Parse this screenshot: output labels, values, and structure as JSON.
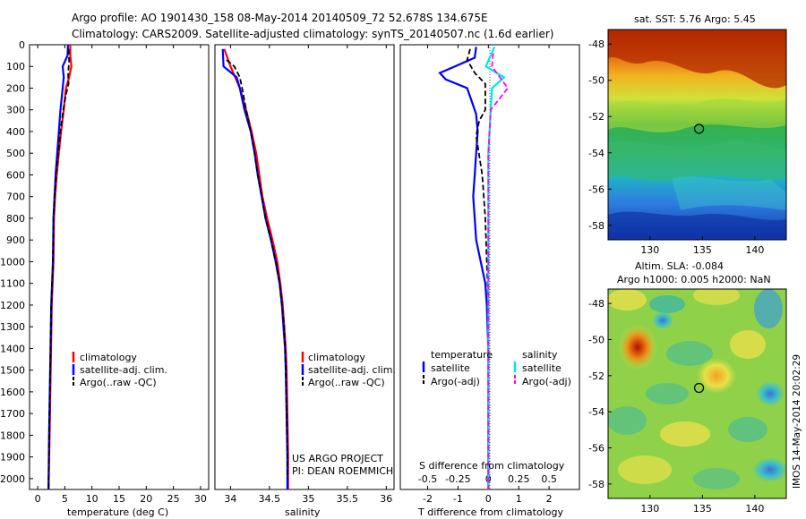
{
  "header": {
    "line1": "Argo profile: AO 1901430_158 08-May-2014 20140509_72 52.678S 134.675E",
    "line2": "Climatology: CARS2009. Satellite-adjusted climatology: synTS_20140507.nc (1.6d earlier)"
  },
  "colors": {
    "climatology": "#ff0000",
    "satellite": "#0000ff",
    "argo": "#000000",
    "sal_satellite": "#00e5ee",
    "sal_argo": "#ff00ff"
  },
  "chart_data": [
    {
      "type": "line",
      "panel": "temperature",
      "xlabel": "temperature (deg C)",
      "ylabel": "",
      "xlim": [
        -1.5,
        31.5
      ],
      "ylim": [
        2050,
        0
      ],
      "xticks": [
        "0",
        "5",
        "10",
        "15",
        "20",
        "25",
        "30"
      ],
      "xtick_values": [
        0,
        5,
        10,
        15,
        20,
        25,
        30
      ],
      "yticks": [
        "0",
        "100",
        "200",
        "300",
        "400",
        "500",
        "600",
        "700",
        "800",
        "900",
        "1000",
        "1100",
        "1200",
        "1300",
        "1400",
        "1500",
        "1600",
        "1700",
        "1800",
        "1900",
        "2000"
      ],
      "ytick_values": [
        0,
        100,
        200,
        300,
        400,
        500,
        600,
        700,
        800,
        900,
        1000,
        1100,
        1200,
        1300,
        1400,
        1500,
        1600,
        1700,
        1800,
        1900,
        2000
      ],
      "legend": [
        "climatology",
        "satellite-adj. clim.",
        "Argo(..raw -QC)"
      ],
      "series": [
        {
          "name": "climatology",
          "style": "solid",
          "color": "#ff0000",
          "points": [
            [
              6.0,
              0
            ],
            [
              6.0,
              50
            ],
            [
              6.2,
              100
            ],
            [
              5.8,
              150
            ],
            [
              5.2,
              200
            ],
            [
              4.8,
              300
            ],
            [
              4.3,
              400
            ],
            [
              3.9,
              500
            ],
            [
              3.5,
              600
            ],
            [
              3.2,
              700
            ],
            [
              3.0,
              800
            ],
            [
              2.9,
              1000
            ],
            [
              2.6,
              1200
            ],
            [
              2.4,
              1500
            ],
            [
              2.2,
              1800
            ],
            [
              2.0,
              2050
            ]
          ]
        },
        {
          "name": "satellite-adj. clim.",
          "style": "solid",
          "color": "#0000ff",
          "points": [
            [
              5.6,
              0
            ],
            [
              5.5,
              50
            ],
            [
              4.6,
              100
            ],
            [
              4.8,
              150
            ],
            [
              4.6,
              200
            ],
            [
              4.2,
              300
            ],
            [
              3.9,
              400
            ],
            [
              3.6,
              500
            ],
            [
              3.3,
              600
            ],
            [
              3.1,
              700
            ],
            [
              2.9,
              800
            ],
            [
              2.8,
              1000
            ],
            [
              2.5,
              1200
            ],
            [
              2.3,
              1500
            ],
            [
              2.1,
              1800
            ],
            [
              2.0,
              2050
            ]
          ]
        },
        {
          "name": "Argo(..raw -QC)",
          "style": "dashed",
          "color": "#000000",
          "points": [
            [
              5.7,
              20
            ],
            [
              5.8,
              80
            ],
            [
              5.6,
              130
            ],
            [
              5.7,
              180
            ],
            [
              5.2,
              230
            ],
            [
              4.7,
              300
            ],
            [
              4.2,
              400
            ],
            [
              3.8,
              500
            ],
            [
              3.4,
              600
            ],
            [
              3.1,
              700
            ],
            [
              2.9,
              800
            ],
            [
              2.8,
              1000
            ],
            [
              2.5,
              1200
            ],
            [
              2.3,
              1500
            ],
            [
              2.1,
              1800
            ],
            [
              2.0,
              2050
            ]
          ]
        }
      ]
    },
    {
      "type": "line",
      "panel": "salinity",
      "xlabel": "salinity",
      "ylabel": "",
      "xlim": [
        33.8,
        36.1
      ],
      "ylim": [
        2050,
        0
      ],
      "xticks": [
        "34",
        "34.5",
        "35",
        "35.5",
        "36"
      ],
      "xtick_values": [
        34,
        34.5,
        35,
        35.5,
        36
      ],
      "legend": [
        "climatology",
        "satellite-adj. clim.",
        "Argo(..raw -QC)"
      ],
      "series": [
        {
          "name": "climatology",
          "style": "solid",
          "color": "#ff0000",
          "points": [
            [
              33.92,
              20
            ],
            [
              34.0,
              100
            ],
            [
              34.12,
              200
            ],
            [
              34.2,
              300
            ],
            [
              34.27,
              400
            ],
            [
              34.33,
              500
            ],
            [
              34.37,
              600
            ],
            [
              34.41,
              700
            ],
            [
              34.47,
              800
            ],
            [
              34.54,
              900
            ],
            [
              34.6,
              1000
            ],
            [
              34.64,
              1100
            ],
            [
              34.67,
              1200
            ],
            [
              34.69,
              1300
            ],
            [
              34.71,
              1400
            ],
            [
              34.72,
              1500
            ],
            [
              34.73,
              1700
            ],
            [
              34.74,
              1900
            ],
            [
              34.74,
              2050
            ]
          ]
        },
        {
          "name": "satellite-adj. clim.",
          "style": "solid",
          "color": "#0000ff",
          "points": [
            [
              33.9,
              20
            ],
            [
              33.91,
              100
            ],
            [
              34.08,
              150
            ],
            [
              34.12,
              200
            ],
            [
              34.18,
              300
            ],
            [
              34.26,
              400
            ],
            [
              34.31,
              500
            ],
            [
              34.35,
              600
            ],
            [
              34.4,
              700
            ],
            [
              34.45,
              800
            ],
            [
              34.52,
              900
            ],
            [
              34.58,
              1000
            ],
            [
              34.63,
              1100
            ],
            [
              34.66,
              1200
            ],
            [
              34.68,
              1300
            ],
            [
              34.7,
              1400
            ],
            [
              34.71,
              1500
            ],
            [
              34.72,
              1700
            ],
            [
              34.73,
              1900
            ],
            [
              34.73,
              2050
            ]
          ]
        },
        {
          "name": "Argo(..raw -QC)",
          "style": "dashed",
          "color": "#000000",
          "points": [
            [
              33.95,
              70
            ],
            [
              34.05,
              100
            ],
            [
              34.12,
              150
            ],
            [
              34.15,
              200
            ],
            [
              34.2,
              300
            ],
            [
              34.26,
              400
            ],
            [
              34.31,
              500
            ],
            [
              34.35,
              600
            ],
            [
              34.4,
              700
            ],
            [
              34.45,
              800
            ],
            [
              34.52,
              900
            ],
            [
              34.58,
              1000
            ],
            [
              34.63,
              1100
            ],
            [
              34.66,
              1200
            ],
            [
              34.69,
              1300
            ],
            [
              34.7,
              1400
            ],
            [
              34.71,
              1500
            ],
            [
              34.72,
              1700
            ],
            [
              34.73,
              1900
            ],
            [
              34.73,
              2000
            ]
          ]
        }
      ]
    },
    {
      "type": "line",
      "panel": "difference",
      "xlabel": "T difference from climatology",
      "xlabel_top": "S difference from climatology",
      "xlim": [
        -2.9,
        3.0
      ],
      "ylim": [
        2050,
        0
      ],
      "xticks": [
        "-2",
        "-1",
        "0",
        "1",
        "2"
      ],
      "xtick_values": [
        -2,
        -1,
        0,
        1,
        2
      ],
      "xticks_s": [
        "-0.5",
        "-0.25",
        "0",
        "0.25",
        "0.5"
      ],
      "xtick_s_values": [
        -0.5,
        -0.25,
        0,
        0.25,
        0.5
      ],
      "legend_temperature_title": "temperature",
      "legend_salinity_title": "salinity",
      "legend": [
        "satellite",
        "Argo(-adj)",
        "satellite",
        "Argo(-adj)"
      ],
      "series": [
        {
          "name": "satellite",
          "quantity": "temperature",
          "style": "solid",
          "color": "#0000ff",
          "points": [
            [
              -0.4,
              10
            ],
            [
              -0.45,
              60
            ],
            [
              -1.1,
              100
            ],
            [
              -1.6,
              130
            ],
            [
              -1.4,
              160
            ],
            [
              -0.7,
              200
            ],
            [
              -0.55,
              260
            ],
            [
              -0.4,
              320
            ],
            [
              -0.35,
              400
            ],
            [
              -0.4,
              500
            ],
            [
              -0.45,
              600
            ],
            [
              -0.5,
              700
            ],
            [
              -0.45,
              800
            ],
            [
              -0.4,
              900
            ],
            [
              -0.25,
              1000
            ],
            [
              -0.1,
              1100
            ],
            [
              -0.05,
              1200
            ],
            [
              0,
              1400
            ],
            [
              0,
              2050
            ]
          ]
        },
        {
          "name": "Argo(-adj)",
          "quantity": "temperature",
          "style": "dashed",
          "color": "#000000",
          "points": [
            [
              -0.6,
              20
            ],
            [
              -0.7,
              70
            ],
            [
              -0.45,
              130
            ],
            [
              -0.1,
              180
            ],
            [
              -0.1,
              300
            ],
            [
              -0.3,
              350
            ],
            [
              -0.4,
              420
            ],
            [
              -0.2,
              600
            ],
            [
              -0.1,
              800
            ],
            [
              -0.05,
              1000
            ],
            [
              0,
              1200
            ],
            [
              0,
              2000
            ]
          ]
        },
        {
          "name": "satellite",
          "quantity": "salinity",
          "style": "solid",
          "color": "#00e5ee",
          "points": [
            [
              0.05,
              10
            ],
            [
              -0.02,
              100
            ],
            [
              0.13,
              150
            ],
            [
              0.03,
              200
            ],
            [
              0.02,
              300
            ],
            [
              0.0,
              500
            ],
            [
              0.0,
              2050
            ]
          ]
        },
        {
          "name": "Argo(-adj)",
          "quantity": "salinity",
          "style": "dashed",
          "color": "#ff00ff",
          "points": [
            [
              0.04,
              40
            ],
            [
              0.03,
              100
            ],
            [
              0.16,
              200
            ],
            [
              0.02,
              300
            ],
            [
              0.0,
              500
            ],
            [
              0.0,
              2050
            ]
          ]
        }
      ]
    },
    {
      "type": "heatmap",
      "panel": "sst_map",
      "title": "sat. SST: 5.76 Argo: 5.45",
      "xlim": [
        126,
        143
      ],
      "ylim": [
        -58.8,
        -47.2
      ],
      "xticks": [
        "130",
        "135",
        "140"
      ],
      "xtick_values": [
        130,
        135,
        140
      ],
      "yticks": [
        "-48",
        "-50",
        "-52",
        "-54",
        "-56",
        "-58"
      ],
      "ytick_values": [
        -48,
        -50,
        -52,
        -54,
        -56,
        -58
      ],
      "marker": [
        134.675,
        -52.678
      ]
    },
    {
      "type": "heatmap",
      "panel": "sla_map",
      "title_line1": "Altim. SLA: -0.084",
      "title_line2": "Argo h1000: 0.005 h2000: NaN",
      "xlim": [
        126,
        143
      ],
      "ylim": [
        -58.8,
        -47.2
      ],
      "xticks": [
        "130",
        "135",
        "140"
      ],
      "xtick_values": [
        130,
        135,
        140
      ],
      "yticks": [
        "-48",
        "-50",
        "-52",
        "-54",
        "-56",
        "-58"
      ],
      "ytick_values": [
        -48,
        -50,
        -52,
        -54,
        -56,
        -58
      ],
      "marker": [
        134.675,
        -52.678
      ]
    }
  ],
  "annotations": {
    "project_line1": "US ARGO PROJECT",
    "project_line2": "PI: DEAN ROEMMICH",
    "watermark": "IMOS 14-May-2014 20:02:29"
  }
}
